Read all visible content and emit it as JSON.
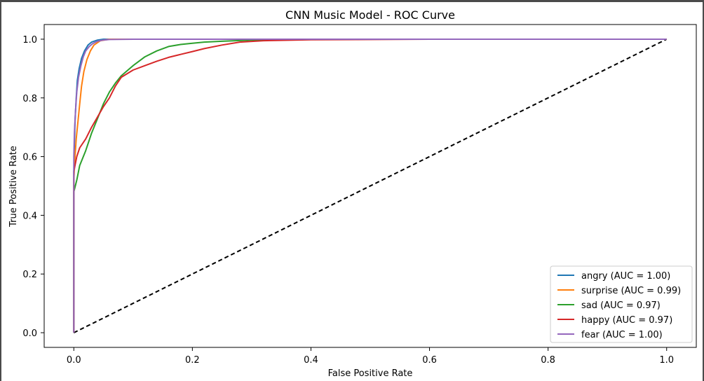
{
  "chart_data": {
    "type": "line",
    "title": "CNN Music Model - ROC Curve",
    "xlabel": "False Positive Rate",
    "ylabel": "True Positive Rate",
    "xlim": [
      -0.05,
      1.05
    ],
    "ylim": [
      -0.05,
      1.05
    ],
    "xticks": [
      0.0,
      0.2,
      0.4,
      0.6,
      0.8,
      1.0
    ],
    "yticks": [
      0.0,
      0.2,
      0.4,
      0.6,
      0.8,
      1.0
    ],
    "xtick_labels": [
      "0.0",
      "0.2",
      "0.4",
      "0.6",
      "0.8",
      "1.0"
    ],
    "ytick_labels": [
      "0.0",
      "0.2",
      "0.4",
      "0.6",
      "0.8",
      "1.0"
    ],
    "grid": false,
    "legend_position": "bottom-right",
    "baseline": {
      "style": "dashed",
      "color": "#000000",
      "x": [
        0,
        1
      ],
      "y": [
        0,
        1
      ]
    },
    "series": [
      {
        "name": "angry (AUC = 1.00)",
        "color": "#1f77b4",
        "x": [
          0.0,
          0.0,
          0.001,
          0.002,
          0.004,
          0.006,
          0.009,
          0.013,
          0.018,
          0.024,
          0.03,
          0.04,
          0.05,
          0.08,
          0.2,
          0.5,
          1.0
        ],
        "y": [
          0.0,
          0.55,
          0.64,
          0.72,
          0.8,
          0.86,
          0.9,
          0.935,
          0.96,
          0.98,
          0.99,
          0.997,
          1.0,
          1.0,
          1.0,
          1.0,
          1.0
        ]
      },
      {
        "name": "surprise (AUC = 0.99)",
        "color": "#ff7f0e",
        "x": [
          0.0,
          0.0,
          0.002,
          0.004,
          0.007,
          0.01,
          0.013,
          0.017,
          0.022,
          0.028,
          0.034,
          0.045,
          0.06,
          0.1,
          0.14,
          0.3,
          1.0
        ],
        "y": [
          0.0,
          0.52,
          0.6,
          0.66,
          0.72,
          0.78,
          0.84,
          0.89,
          0.93,
          0.96,
          0.98,
          0.995,
          1.0,
          1.0,
          1.0,
          1.0,
          1.0
        ]
      },
      {
        "name": "sad (AUC = 0.97)",
        "color": "#2ca02c",
        "x": [
          0.0,
          0.0,
          0.005,
          0.01,
          0.02,
          0.03,
          0.04,
          0.05,
          0.06,
          0.07,
          0.08,
          0.1,
          0.12,
          0.14,
          0.16,
          0.18,
          0.2,
          0.22,
          0.25,
          0.3,
          0.4,
          0.6,
          1.0
        ],
        "y": [
          0.0,
          0.48,
          0.52,
          0.57,
          0.62,
          0.68,
          0.73,
          0.78,
          0.82,
          0.85,
          0.875,
          0.91,
          0.94,
          0.96,
          0.975,
          0.982,
          0.986,
          0.99,
          0.993,
          0.997,
          1.0,
          1.0,
          1.0
        ]
      },
      {
        "name": "happy (AUC = 0.97)",
        "color": "#d62728",
        "x": [
          0.0,
          0.0,
          0.005,
          0.01,
          0.02,
          0.03,
          0.04,
          0.05,
          0.06,
          0.07,
          0.08,
          0.1,
          0.12,
          0.14,
          0.16,
          0.18,
          0.2,
          0.22,
          0.25,
          0.28,
          0.32,
          0.4,
          0.6,
          1.0
        ],
        "y": [
          0.0,
          0.55,
          0.6,
          0.63,
          0.66,
          0.7,
          0.735,
          0.77,
          0.8,
          0.84,
          0.87,
          0.895,
          0.91,
          0.925,
          0.938,
          0.948,
          0.958,
          0.968,
          0.98,
          0.99,
          0.995,
          0.998,
          1.0,
          1.0
        ]
      },
      {
        "name": "fear (AUC = 1.00)",
        "color": "#9467bd",
        "x": [
          0.0,
          0.0,
          0.001,
          0.003,
          0.005,
          0.008,
          0.012,
          0.016,
          0.02,
          0.026,
          0.032,
          0.04,
          0.05,
          0.06,
          0.1,
          0.3,
          0.6,
          1.0
        ],
        "y": [
          0.0,
          0.6,
          0.68,
          0.76,
          0.82,
          0.87,
          0.91,
          0.94,
          0.96,
          0.975,
          0.985,
          0.993,
          0.997,
          0.999,
          1.0,
          1.0,
          1.0,
          1.0
        ]
      }
    ]
  }
}
